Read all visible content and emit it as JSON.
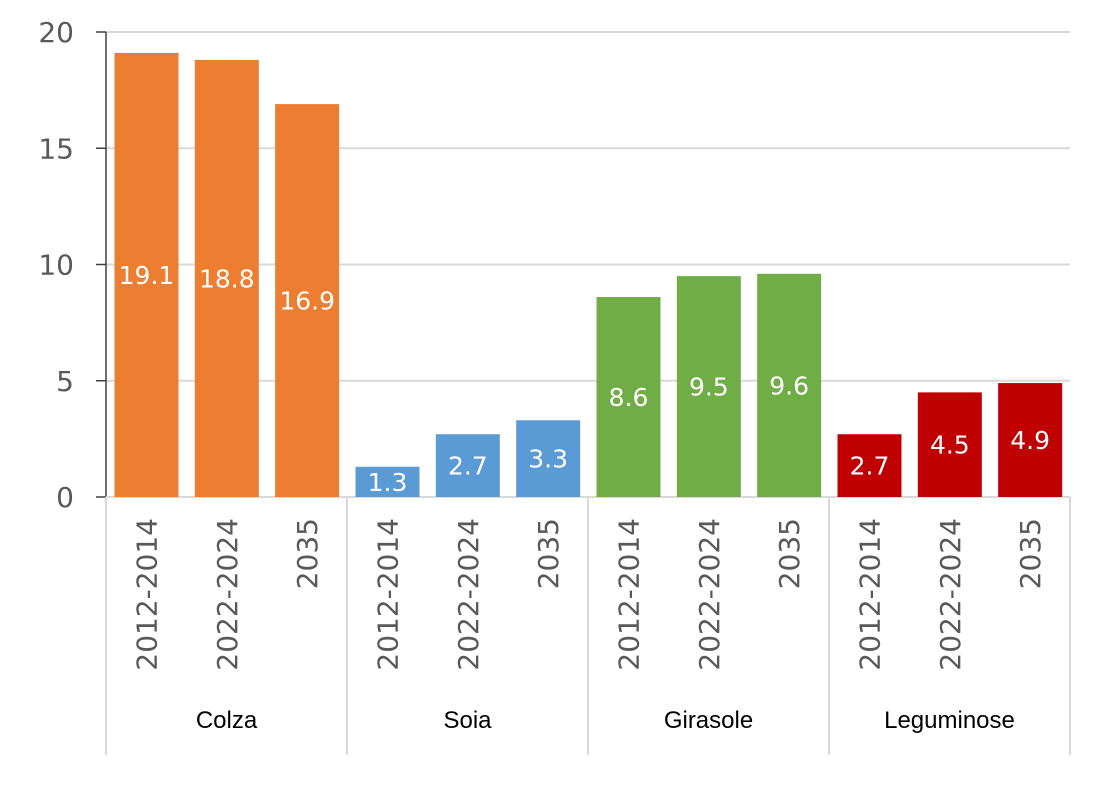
{
  "chart_data": {
    "type": "bar",
    "title": "",
    "xlabel": "",
    "ylabel": "",
    "ylim": [
      0,
      20
    ],
    "yticks": [
      0,
      5,
      10,
      15,
      20
    ],
    "grid": true,
    "legend": "none",
    "groups": [
      {
        "name": "Colza",
        "color": "#ED7D31",
        "categories": [
          "2012-2014",
          "2022-2024",
          "2035"
        ],
        "values": [
          19.1,
          18.8,
          16.9
        ],
        "labels": [
          "19.1",
          "18.8",
          "16.9"
        ]
      },
      {
        "name": "Soia",
        "color": "#5B9BD5",
        "categories": [
          "2012-2014",
          "2022-2024",
          "2035"
        ],
        "values": [
          1.3,
          2.7,
          3.3
        ],
        "labels": [
          "1.3",
          "2.7",
          "3.3"
        ]
      },
      {
        "name": "Girasole",
        "color": "#70AD47",
        "categories": [
          "2012-2014",
          "2022-2024",
          "2035"
        ],
        "values": [
          8.6,
          9.5,
          9.6
        ],
        "labels": [
          "8.6",
          "9.5",
          "9.6"
        ]
      },
      {
        "name": "Leguminose",
        "color": "#C00000",
        "categories": [
          "2012-2014",
          "2022-2024",
          "2035"
        ],
        "values": [
          2.7,
          4.5,
          4.9
        ],
        "labels": [
          "2.7",
          "4.5",
          "4.9"
        ]
      }
    ]
  }
}
